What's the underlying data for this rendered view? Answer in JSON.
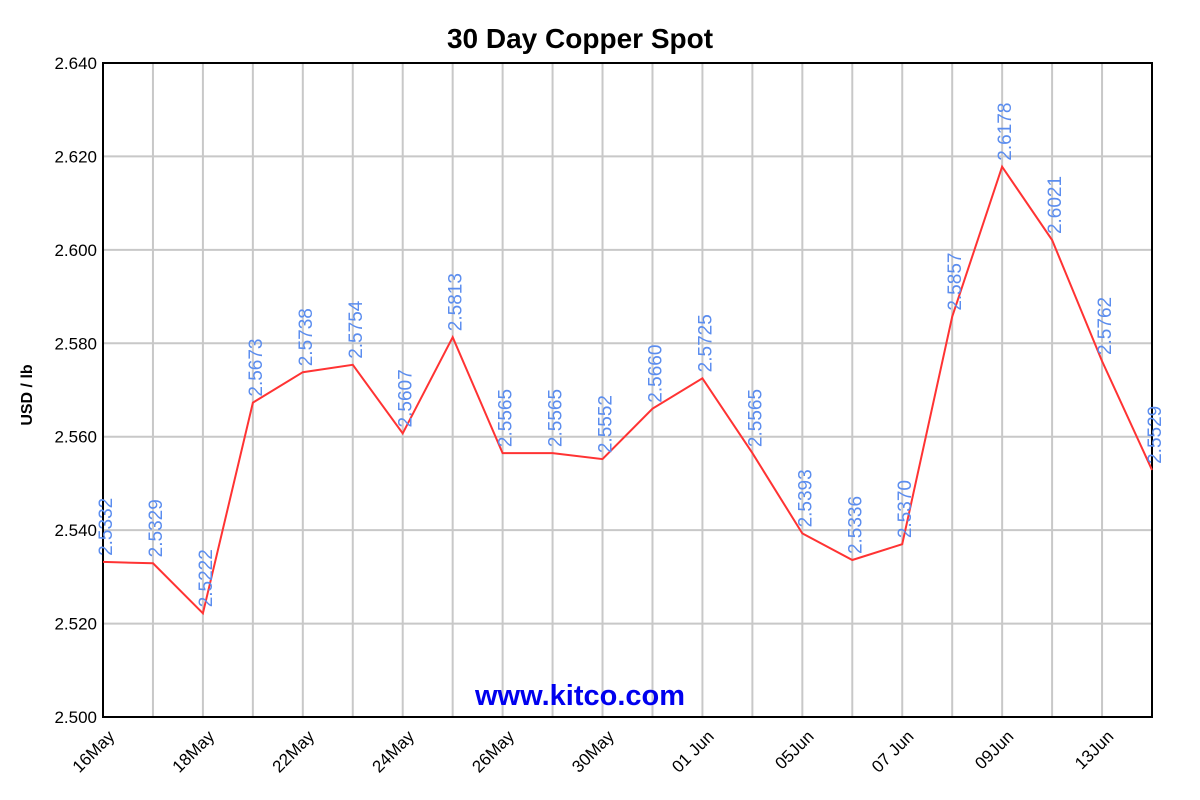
{
  "chart_data": {
    "type": "line",
    "title": "30 Day Copper Spot",
    "ylabel": "USD / lb",
    "xlabel": "",
    "watermark": "www.kitco.com",
    "ylim": [
      2.5,
      2.64
    ],
    "yticks": [
      "2.500",
      "2.520",
      "2.540",
      "2.560",
      "2.580",
      "2.600",
      "2.620",
      "2.640"
    ],
    "x_tick_labels": [
      "16May",
      "18May",
      "22May",
      "24May",
      "26May",
      "30May",
      "01 Jun",
      "05Jun",
      "07 Jun",
      "09Jun",
      "13Jun"
    ],
    "grid": true,
    "series": [
      {
        "color": "#ff3333",
        "values": [
          2.5332,
          2.5329,
          2.5222,
          2.5673,
          2.5738,
          2.5754,
          2.5607,
          2.5813,
          2.5565,
          2.5565,
          2.5552,
          2.566,
          2.5725,
          2.5565,
          2.5393,
          2.5336,
          2.537,
          2.5857,
          2.6178,
          2.6021,
          2.5762,
          2.5529
        ],
        "labels": [
          "2.5332",
          "2.5329",
          "2.5222",
          "2.5673",
          "2.5738",
          "2.5754",
          "2.5607",
          "2.5813",
          "2.5565",
          "2.5565",
          "2.5552",
          "2.5660",
          "2.5725",
          "2.5565",
          "2.5393",
          "2.5336",
          "2.5370",
          "2.5857",
          "2.6178",
          "2.6021",
          "2.5762",
          "2.5529"
        ]
      }
    ],
    "label_color": "#5b8def"
  }
}
